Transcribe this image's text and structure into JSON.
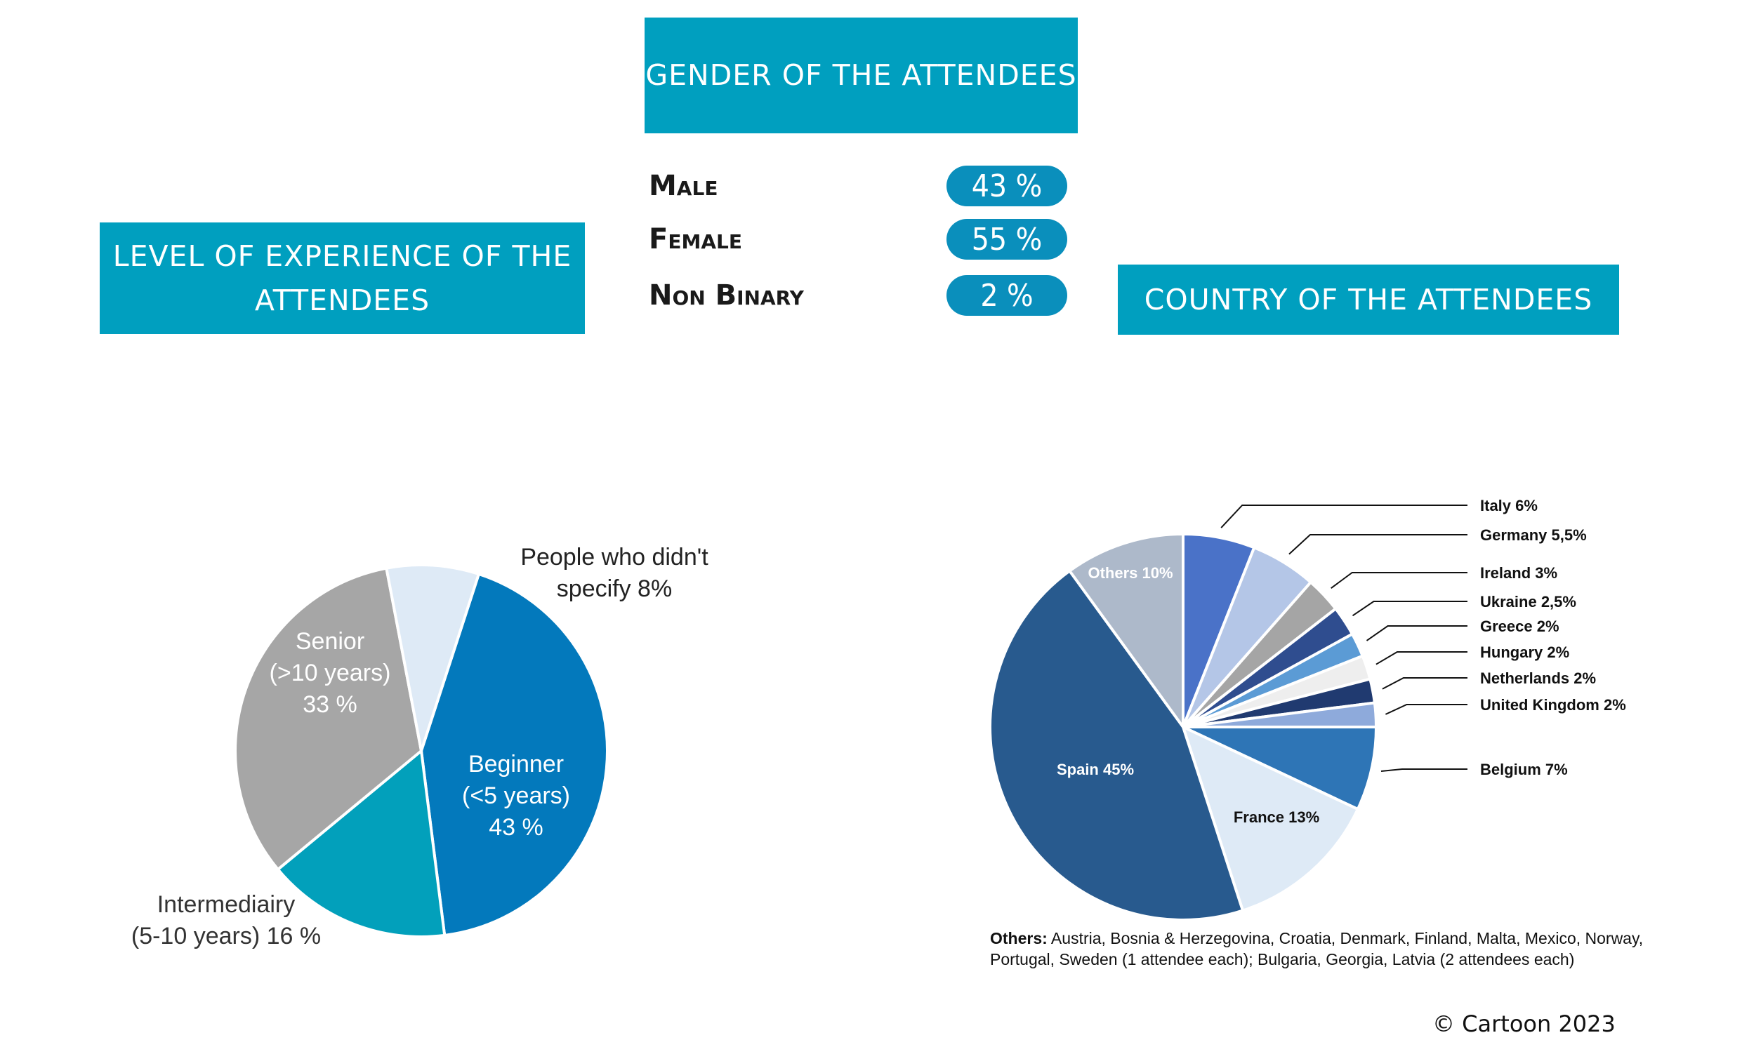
{
  "banners": {
    "gender": "GENDER OF THE ATTENDEES",
    "experience": "LEVEL OF EXPERIENCE OF THE ATTENDEES",
    "country": "COUNTRY OF THE ATTENDEES"
  },
  "gender": [
    {
      "label": "Male",
      "value": "43 %"
    },
    {
      "label": "Female",
      "value": "55 %"
    },
    {
      "label": "Non Binary",
      "value": "2 %"
    }
  ],
  "colors": {
    "banner": "#009fbf",
    "pill": "#0a8fbc"
  },
  "copyright": "© Cartoon 2023",
  "chart_data": [
    {
      "type": "pie",
      "slices": [
        {
          "label": [
            "Beginner",
            "(<5 years)",
            "43 %"
          ],
          "value": 43,
          "color": "#0379bc"
        },
        {
          "label": [
            "Intermediairy",
            "(5-10 years) 16 %"
          ],
          "value": 16,
          "color": "#02a0bb"
        },
        {
          "label": [
            "Senior",
            "(>10 years)",
            "33 %"
          ],
          "value": 33,
          "color": "#a6a6a6"
        },
        {
          "label": [
            "People who didn't",
            "specify 8%"
          ],
          "value": 8,
          "color": "#deeaf6"
        }
      ]
    },
    {
      "type": "pie",
      "slices": [
        {
          "label": "Italy 6%",
          "value": 6,
          "color": "#4a72c8"
        },
        {
          "label": "Germany 5,5%",
          "value": 5.5,
          "color": "#b4c6e7"
        },
        {
          "label": "Ireland 3%",
          "value": 3,
          "color": "#a5a5a5"
        },
        {
          "label": "Ukraine 2,5%",
          "value": 2.5,
          "color": "#2f4d8f"
        },
        {
          "label": "Greece 2%",
          "value": 2,
          "color": "#5b9bd5"
        },
        {
          "label": "Hungary 2%",
          "value": 2,
          "color": "#eeeeee"
        },
        {
          "label": "Netherlands 2%",
          "value": 2,
          "color": "#203a70"
        },
        {
          "label": "United Kingdom 2%",
          "value": 2,
          "color": "#8eaadb"
        },
        {
          "label": "Belgium 7%",
          "value": 7,
          "color": "#2e75b6"
        },
        {
          "label": "France 13%",
          "value": 13,
          "color": "#deeaf6"
        },
        {
          "label": "Spain 45%",
          "value": 45,
          "color": "#285a8e"
        },
        {
          "label": "Others 10%",
          "value": 10,
          "color": "#adb9ca"
        }
      ],
      "footnote": {
        "bold": "Others:",
        "line1": " Austria, Bosnia & Herzegovina, Croatia, Denmark, Finland, Malta, Mexico, Norway,",
        "line2": "Portugal, Sweden (1 attendee each); Bulgaria, Georgia, Latvia (2 attendees each)"
      }
    }
  ]
}
